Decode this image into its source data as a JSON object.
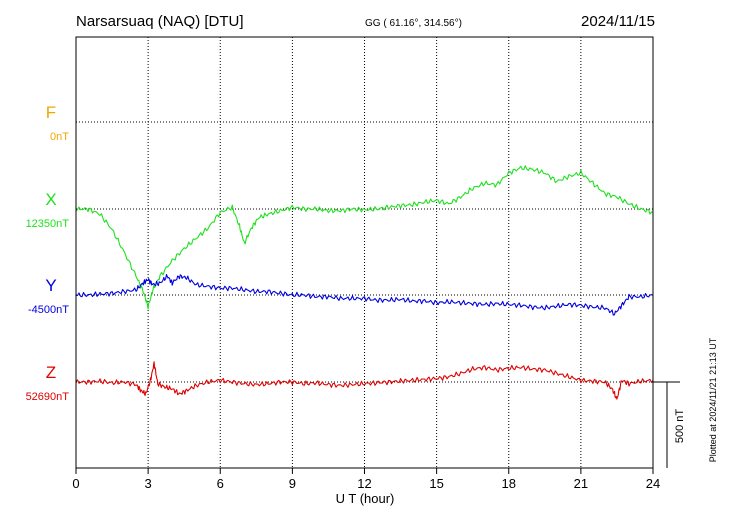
{
  "header": {
    "station": "Narsarsuaq (NAQ)  [DTU]",
    "coords": "GG ( 61.16°, 314.56°)",
    "date": "2024/11/15"
  },
  "side_note": "Plotted at 2024/11/21 21:13 UT",
  "scale_label": "500 nT",
  "colors": {
    "F": "#f0a800",
    "X": "#20e020",
    "Y": "#0000e0",
    "Z": "#e00000",
    "axis": "#000000"
  },
  "chart_data": {
    "type": "line",
    "xlabel": "U T (hour)",
    "x_ticks": [
      0,
      3,
      6,
      9,
      12,
      15,
      18,
      21,
      24
    ],
    "xlim": [
      0,
      24
    ],
    "panel_labels": [
      {
        "component": "F",
        "baseline_label": "0nT"
      },
      {
        "component": "X",
        "baseline_label": "12350nT"
      },
      {
        "component": "Y",
        "baseline_label": "-4500nT"
      },
      {
        "component": "Z",
        "baseline_label": "52690nT"
      }
    ],
    "series": [
      {
        "name": "X",
        "baseline": 12350,
        "unit": "nT",
        "x": [
          0,
          0.5,
          1.0,
          1.5,
          2.0,
          2.5,
          2.8,
          3.0,
          3.2,
          3.5,
          4.0,
          4.5,
          5.0,
          5.5,
          6.0,
          6.5,
          6.8,
          7.0,
          7.3,
          7.6,
          8.0,
          8.5,
          9.0,
          9.5,
          10.0,
          10.5,
          11.0,
          11.5,
          12.0,
          12.5,
          13.0,
          13.5,
          14.0,
          14.5,
          15.0,
          15.5,
          16.0,
          16.5,
          17.0,
          17.5,
          18.0,
          18.5,
          19.0,
          19.5,
          20.0,
          20.5,
          21.0,
          21.5,
          22.0,
          22.5,
          23.0,
          23.5,
          24.0
        ],
        "values": [
          12350,
          12350,
          12320,
          12230,
          12100,
          11960,
          11870,
          11780,
          11880,
          11960,
          12050,
          12120,
          12180,
          12240,
          12330,
          12360,
          12250,
          12150,
          12240,
          12300,
          12320,
          12340,
          12360,
          12350,
          12350,
          12340,
          12340,
          12350,
          12345,
          12350,
          12360,
          12370,
          12375,
          12390,
          12400,
          12380,
          12420,
          12470,
          12500,
          12490,
          12560,
          12590,
          12580,
          12560,
          12510,
          12540,
          12560,
          12500,
          12440,
          12420,
          12380,
          12350,
          12330
        ]
      },
      {
        "name": "Y",
        "baseline": -4500,
        "unit": "nT",
        "x": [
          0,
          0.5,
          1.0,
          1.5,
          2.0,
          2.5,
          2.8,
          3.0,
          3.2,
          3.5,
          3.8,
          4.0,
          4.3,
          4.6,
          5.0,
          5.5,
          6.0,
          6.5,
          7.0,
          7.5,
          8.0,
          8.5,
          9.0,
          9.5,
          10.0,
          10.5,
          11.0,
          11.5,
          12.0,
          12.5,
          13.0,
          13.5,
          14.0,
          14.5,
          15.0,
          15.5,
          16.0,
          16.5,
          17.0,
          17.5,
          18.0,
          18.5,
          19.0,
          19.5,
          20.0,
          20.5,
          21.0,
          21.5,
          22.0,
          22.4,
          22.7,
          23.0,
          23.5,
          24.0
        ],
        "values": [
          -4500,
          -4500,
          -4495,
          -4490,
          -4480,
          -4470,
          -4430,
          -4410,
          -4440,
          -4430,
          -4390,
          -4430,
          -4390,
          -4400,
          -4440,
          -4450,
          -4460,
          -4460,
          -4470,
          -4480,
          -4480,
          -4490,
          -4500,
          -4500,
          -4510,
          -4510,
          -4520,
          -4520,
          -4520,
          -4530,
          -4530,
          -4525,
          -4535,
          -4535,
          -4545,
          -4540,
          -4545,
          -4550,
          -4555,
          -4550,
          -4555,
          -4560,
          -4570,
          -4575,
          -4565,
          -4555,
          -4560,
          -4570,
          -4575,
          -4610,
          -4560,
          -4510,
          -4510,
          -4500
        ]
      },
      {
        "name": "Z",
        "baseline": 52690,
        "unit": "nT",
        "x": [
          0,
          0.5,
          1.0,
          1.5,
          2.0,
          2.5,
          2.7,
          2.9,
          3.1,
          3.25,
          3.4,
          3.7,
          4.0,
          4.3,
          4.6,
          5.0,
          5.5,
          6.0,
          6.5,
          7.0,
          7.5,
          8.0,
          8.5,
          9.0,
          9.5,
          10.0,
          10.5,
          11.0,
          11.5,
          12.0,
          12.5,
          13.0,
          13.5,
          14.0,
          14.5,
          15.0,
          15.5,
          16.0,
          16.5,
          17.0,
          17.5,
          18.0,
          18.5,
          19.0,
          19.5,
          20.0,
          20.5,
          21.0,
          21.5,
          22.0,
          22.3,
          22.5,
          22.7,
          23.0,
          23.5,
          24.0
        ],
        "values": [
          52690,
          52690,
          52695,
          52685,
          52690,
          52675,
          52640,
          52620,
          52700,
          52800,
          52680,
          52660,
          52650,
          52620,
          52640,
          52670,
          52690,
          52700,
          52690,
          52680,
          52675,
          52680,
          52690,
          52690,
          52680,
          52685,
          52675,
          52670,
          52675,
          52680,
          52685,
          52690,
          52695,
          52700,
          52705,
          52710,
          52720,
          52740,
          52765,
          52775,
          52760,
          52770,
          52775,
          52765,
          52760,
          52740,
          52720,
          52700,
          52695,
          52690,
          52650,
          52590,
          52700,
          52680,
          52695,
          52700
        ]
      }
    ]
  }
}
